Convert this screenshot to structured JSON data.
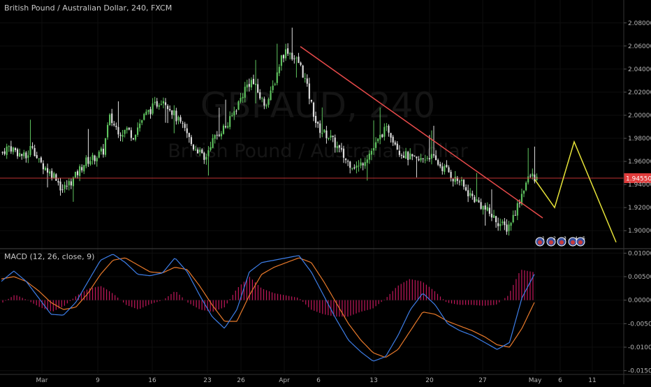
{
  "chart_data": {
    "type": "candlestick",
    "title": "British Pound / Australian Dollar, 240, FXCM",
    "watermark": {
      "symbol": "GBPAUD, 240",
      "name": "British Pound / Australian Dollar"
    },
    "price_axis": {
      "range": [
        1.885,
        2.095
      ],
      "ticks": [
        "2.08000",
        "2.06000",
        "2.04000",
        "2.02000",
        "2.00000",
        "1.98000",
        "1.96000",
        "1.94000",
        "1.92000",
        "1.90000"
      ]
    },
    "current_price": {
      "label": "1.94550",
      "value": 1.9455,
      "color": "#e03b3b"
    },
    "x_ticks": [
      "Mar",
      "9",
      "16",
      "23",
      "26",
      "Apr",
      "6",
      "13",
      "20",
      "27",
      "May",
      "6",
      "11"
    ],
    "price_path": [
      1.968,
      1.973,
      1.97,
      1.966,
      1.963,
      1.975,
      1.96,
      1.956,
      1.95,
      1.947,
      1.935,
      1.94,
      1.945,
      1.953,
      1.96,
      1.962,
      1.965,
      1.969,
      1.998,
      1.99,
      1.985,
      1.988,
      1.982,
      1.992,
      2.0,
      2.005,
      2.01,
      2.015,
      2.008,
      2.0,
      1.992,
      1.985,
      1.973,
      1.97,
      1.96,
      1.975,
      1.982,
      1.988,
      1.992,
      2.003,
      2.013,
      2.025,
      2.03,
      2.02,
      2.01,
      2.015,
      2.032,
      2.051,
      2.057,
      2.05,
      2.045,
      2.03,
      2.01,
      1.99,
      1.985,
      1.982,
      1.975,
      1.968,
      1.96,
      1.957,
      1.955,
      1.962,
      1.968,
      1.975,
      1.985,
      1.988,
      1.978,
      1.968,
      1.965,
      1.962,
      1.96,
      1.963,
      1.965,
      1.96,
      1.955,
      1.952,
      1.945,
      1.943,
      1.935,
      1.93,
      1.925,
      1.92,
      1.915,
      1.91,
      1.905,
      1.902,
      1.912,
      1.925,
      1.94,
      1.948,
      1.945
    ],
    "trendline": {
      "from": 1.9595,
      "to": 1.911,
      "color": "#e84a4a"
    },
    "projection": {
      "points": [
        1.944,
        1.92,
        1.977,
        1.89
      ],
      "color": "#e6e338"
    },
    "price_panel_labels": [
      "GBPAUD"
    ],
    "macd": {
      "label": "MACD (12, 26, close, 9)",
      "range": [
        -0.0155,
        0.0108
      ],
      "ticks": [
        "0.01000",
        "0.00500",
        "0.00000",
        "-0.00500",
        "-0.01000",
        "-0.01500"
      ],
      "macd_line": [
        0.004,
        0.0062,
        0.004,
        0.0005,
        -0.003,
        -0.0032,
        -0.0005,
        0.004,
        0.0085,
        0.0098,
        0.008,
        0.0055,
        0.0052,
        0.0058,
        0.009,
        0.006,
        0.001,
        -0.0035,
        -0.006,
        -0.002,
        0.006,
        0.008,
        0.0085,
        0.009,
        0.0095,
        0.006,
        0.001,
        -0.004,
        -0.0085,
        -0.011,
        -0.013,
        -0.012,
        -0.0075,
        -0.002,
        0.0015,
        -0.001,
        -0.005,
        -0.0065,
        -0.0075,
        -0.009,
        -0.0105,
        -0.009,
        0.0005,
        0.0055
      ],
      "signal_line": [
        0.0045,
        0.005,
        0.004,
        0.002,
        -0.0005,
        -0.002,
        -0.0015,
        0.0015,
        0.0055,
        0.0085,
        0.009,
        0.0075,
        0.006,
        0.0058,
        0.007,
        0.0065,
        0.003,
        -0.001,
        -0.0045,
        -0.0045,
        0.001,
        0.0055,
        0.007,
        0.008,
        0.009,
        0.008,
        0.004,
        -0.0005,
        -0.005,
        -0.0085,
        -0.0112,
        -0.0122,
        -0.0105,
        -0.0065,
        -0.0025,
        -0.003,
        -0.0045,
        -0.0055,
        -0.0065,
        -0.0078,
        -0.0095,
        -0.01,
        -0.006,
        -0.0005
      ],
      "macd_color": "#3d7ee8",
      "signal_color": "#e8792a",
      "histogram_color": "#c2185b"
    },
    "colors": {
      "up": "#5fc45f",
      "down": "#e0e0e0",
      "background": "#000000",
      "grid": "#0e0e0e"
    },
    "event_icons": [
      "1",
      "2",
      "3",
      "4",
      "5"
    ]
  }
}
